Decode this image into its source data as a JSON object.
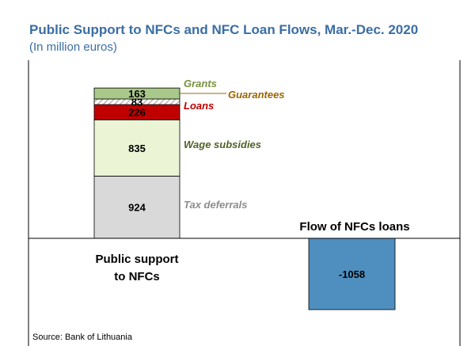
{
  "header": {
    "title": "Public Support to NFCs and NFC Loan Flows, Mar.-Dec. 2020",
    "subtitle": "(In million euros)"
  },
  "footer": {
    "source": "Source: Bank of Lithuania"
  },
  "chart_data": {
    "type": "bar",
    "stacked": true,
    "categories": [
      "Public support\nto NFCs",
      "Flow of NFCs loans"
    ],
    "category_labels": [
      "Public support",
      "to NFCs",
      "Flow of NFCs loans"
    ],
    "title": "Public Support to NFCs and NFC Loan Flows, Mar.-Dec. 2020",
    "subtitle": "(In million euros)",
    "xlabel": "",
    "ylabel": "",
    "ylim": [
      -1250,
      2400
    ],
    "grid": false,
    "series": [
      {
        "name": "Tax deferrals",
        "values": [
          924,
          0
        ],
        "color": "#d9d9d9",
        "label_color": "#8c8c8c"
      },
      {
        "name": "Wage subsidies",
        "values": [
          835,
          0
        ],
        "color": "#ebf5d6",
        "label_color": "#4f6228"
      },
      {
        "name": "Loans",
        "values": [
          226,
          0
        ],
        "color": "#c00000",
        "label_color": "#c00000"
      },
      {
        "name": "Guarantees",
        "values": [
          83,
          0
        ],
        "color": "#ffffff",
        "label_color": "#9c6500",
        "pattern": "hatch"
      },
      {
        "name": "Grants",
        "values": [
          163,
          0
        ],
        "color": "#a9c98a",
        "label_color": "#77933c"
      },
      {
        "name": "Flow of NFCs loans",
        "values": [
          0,
          -1058
        ],
        "color": "#4f8fbf",
        "label_color": "#000000"
      }
    ]
  }
}
